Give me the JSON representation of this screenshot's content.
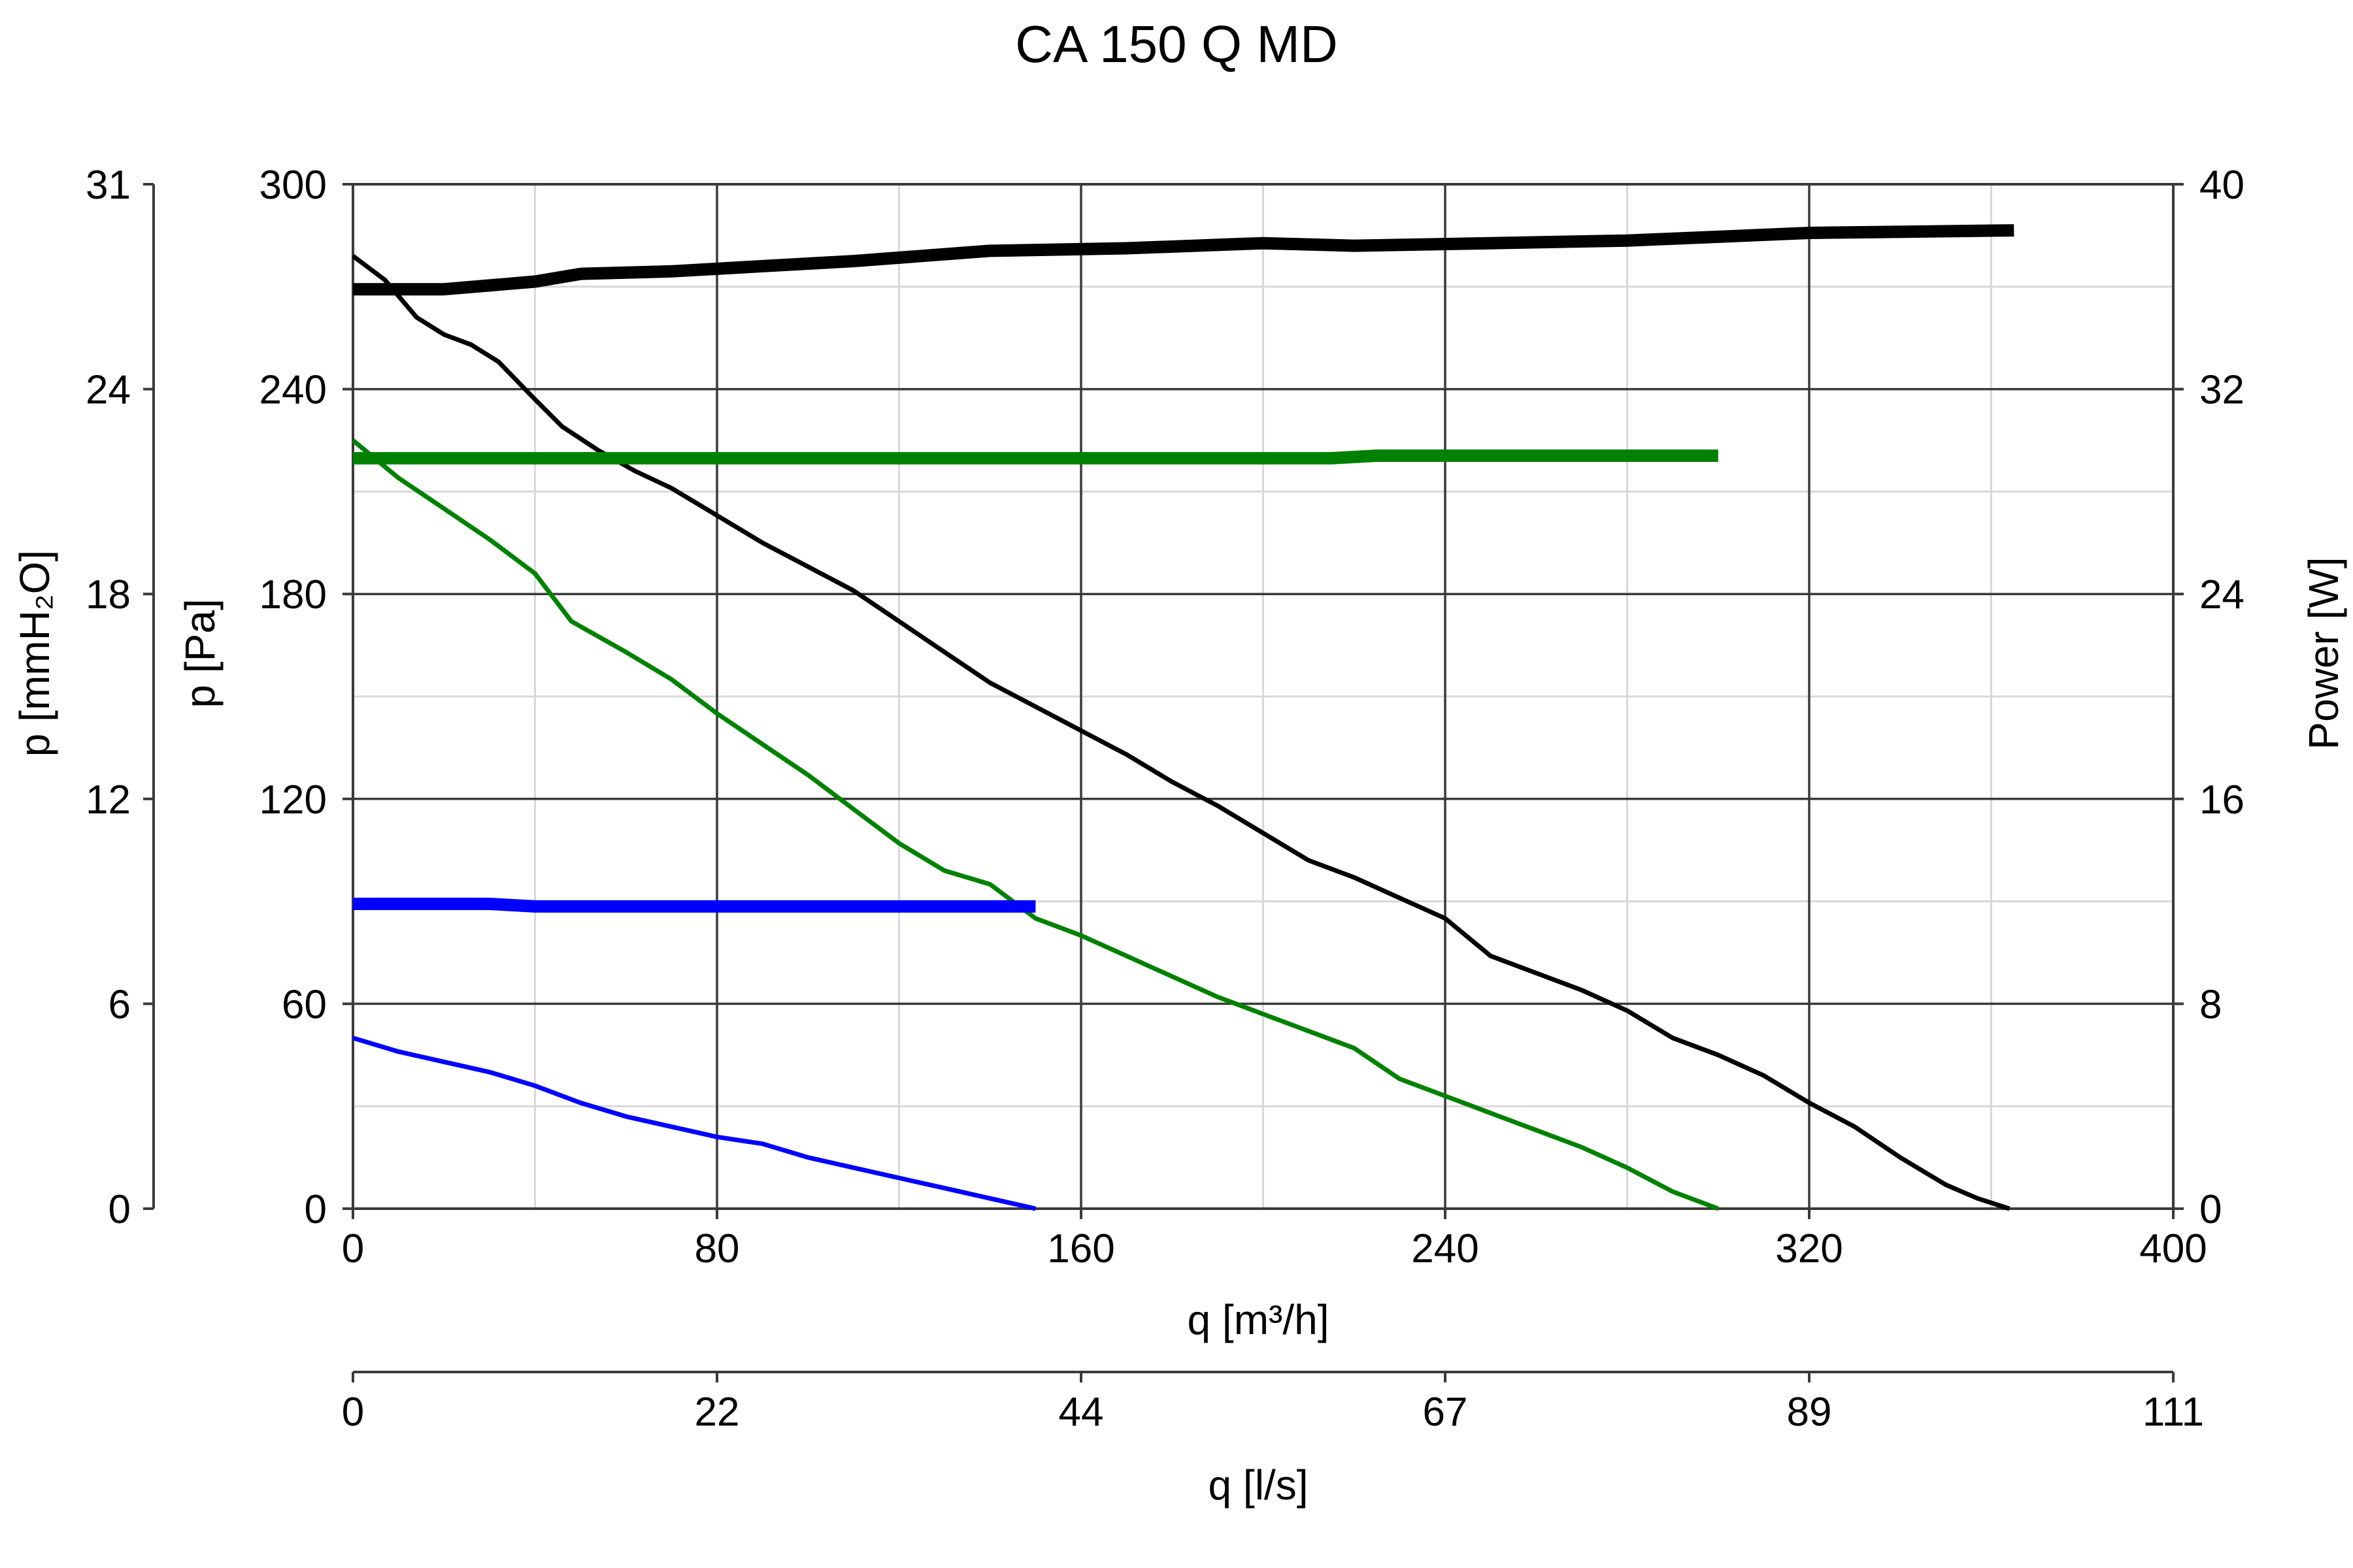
{
  "chart_data": {
    "type": "line",
    "title": "CA 150 Q MD",
    "xlabel": "q [m³/h]",
    "x2label": "q [l/s]",
    "ylabel": "p [Pa]",
    "y2label": "p [mmH₂O]",
    "y3label": "Power [W]",
    "xlim": [
      0,
      400
    ],
    "ylim": [
      0,
      300
    ],
    "power_lim": [
      0,
      40
    ],
    "x_ticks": [
      "0",
      "80",
      "160",
      "240",
      "320",
      "400"
    ],
    "x2_ticks": [
      "0",
      "22",
      "44",
      "67",
      "89",
      "111"
    ],
    "y_ticks": [
      "0",
      "60",
      "120",
      "180",
      "240",
      "300"
    ],
    "y2_ticks": [
      "0",
      "6",
      "12",
      "18",
      "24",
      "31"
    ],
    "power_ticks": [
      "0",
      "8",
      "16",
      "24",
      "32",
      "40"
    ],
    "grid": true,
    "series": [
      {
        "kind": "pressure",
        "axis": "pressure",
        "color": "#000000",
        "points": [
          [
            0,
            279
          ],
          [
            7,
            272
          ],
          [
            14,
            261
          ],
          [
            20,
            256
          ],
          [
            26,
            253
          ],
          [
            32,
            248
          ],
          [
            40,
            237
          ],
          [
            46,
            229
          ],
          [
            54,
            222
          ],
          [
            62,
            216
          ],
          [
            70,
            211
          ],
          [
            80,
            203
          ],
          [
            90,
            195
          ],
          [
            100,
            188
          ],
          [
            110,
            181
          ],
          [
            120,
            172
          ],
          [
            130,
            163
          ],
          [
            140,
            154
          ],
          [
            150,
            147
          ],
          [
            160,
            140
          ],
          [
            170,
            133
          ],
          [
            180,
            125
          ],
          [
            190,
            118
          ],
          [
            200,
            110
          ],
          [
            210,
            102
          ],
          [
            220,
            97
          ],
          [
            230,
            91
          ],
          [
            240,
            85
          ],
          [
            250,
            74
          ],
          [
            260,
            69
          ],
          [
            270,
            64
          ],
          [
            280,
            58
          ],
          [
            290,
            50
          ],
          [
            300,
            45
          ],
          [
            310,
            39
          ],
          [
            320,
            31
          ],
          [
            330,
            24
          ],
          [
            340,
            15
          ],
          [
            350,
            7
          ],
          [
            357,
            3
          ],
          [
            364,
            0
          ]
        ]
      },
      {
        "kind": "pressure",
        "axis": "pressure",
        "color": "#008000",
        "points": [
          [
            0,
            225
          ],
          [
            10,
            214
          ],
          [
            20,
            205
          ],
          [
            30,
            196
          ],
          [
            40,
            186
          ],
          [
            48,
            172
          ],
          [
            60,
            163
          ],
          [
            70,
            155
          ],
          [
            80,
            145
          ],
          [
            90,
            136
          ],
          [
            100,
            127
          ],
          [
            110,
            117
          ],
          [
            120,
            107
          ],
          [
            130,
            99
          ],
          [
            140,
            95
          ],
          [
            150,
            85
          ],
          [
            160,
            80
          ],
          [
            170,
            74
          ],
          [
            180,
            68
          ],
          [
            190,
            62
          ],
          [
            200,
            57
          ],
          [
            210,
            52
          ],
          [
            220,
            47
          ],
          [
            230,
            38
          ],
          [
            240,
            33
          ],
          [
            250,
            28
          ],
          [
            260,
            23
          ],
          [
            270,
            18
          ],
          [
            280,
            12
          ],
          [
            290,
            5
          ],
          [
            300,
            0
          ]
        ]
      },
      {
        "kind": "pressure",
        "axis": "pressure",
        "color": "#0000ff",
        "points": [
          [
            0,
            50
          ],
          [
            10,
            46
          ],
          [
            20,
            43
          ],
          [
            30,
            40
          ],
          [
            40,
            36
          ],
          [
            50,
            31
          ],
          [
            60,
            27
          ],
          [
            70,
            24
          ],
          [
            80,
            21
          ],
          [
            90,
            19
          ],
          [
            100,
            15
          ],
          [
            110,
            12
          ],
          [
            120,
            9
          ],
          [
            130,
            6
          ],
          [
            140,
            3
          ],
          [
            150,
            0
          ]
        ]
      },
      {
        "kind": "power",
        "axis": "power",
        "color": "#000000",
        "points": [
          [
            0,
            35.9
          ],
          [
            20,
            35.9
          ],
          [
            40,
            36.2
          ],
          [
            50,
            36.5
          ],
          [
            70,
            36.6
          ],
          [
            90,
            36.8
          ],
          [
            110,
            37
          ],
          [
            140,
            37.4
          ],
          [
            170,
            37.5
          ],
          [
            200,
            37.7
          ],
          [
            220,
            37.6
          ],
          [
            250,
            37.7
          ],
          [
            280,
            37.8
          ],
          [
            320,
            38.1
          ],
          [
            365,
            38.2
          ]
        ]
      },
      {
        "kind": "power",
        "axis": "power",
        "color": "#008000",
        "points": [
          [
            0,
            29.3
          ],
          [
            100,
            29.3
          ],
          [
            215,
            29.3
          ],
          [
            225,
            29.4
          ],
          [
            300,
            29.4
          ]
        ]
      },
      {
        "kind": "power",
        "axis": "power",
        "color": "#0000ff",
        "points": [
          [
            0,
            11.9
          ],
          [
            30,
            11.9
          ],
          [
            40,
            11.8
          ],
          [
            150,
            11.8
          ]
        ]
      }
    ]
  }
}
